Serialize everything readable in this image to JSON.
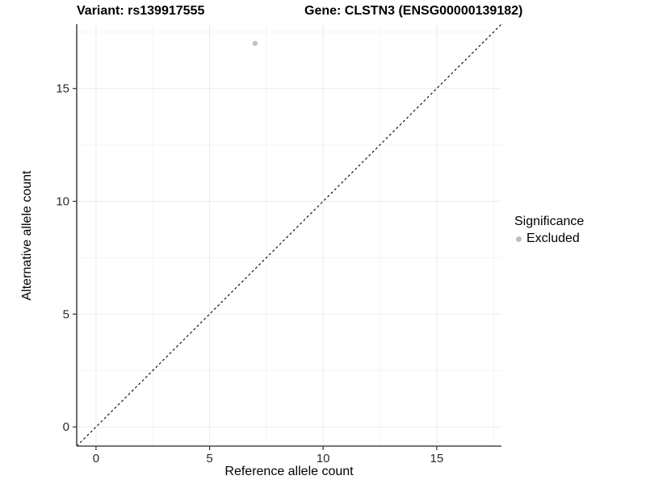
{
  "chart_data": {
    "type": "scatter",
    "titles": {
      "left": "Variant: rs139917555",
      "right": "Gene: CLSTN3 (ENSG00000139182)"
    },
    "xlabel": "Reference allele count",
    "ylabel": "Alternative allele count",
    "xlim": [
      -0.85,
      17.85
    ],
    "ylim": [
      -0.85,
      17.85
    ],
    "xticks": [
      0,
      5,
      10,
      15
    ],
    "yticks": [
      0,
      5,
      10,
      15
    ],
    "minor_xticks": [
      2.5,
      7.5,
      12.5,
      17.5
    ],
    "minor_yticks": [
      2.5,
      7.5,
      12.5,
      17.5
    ],
    "grid": "on",
    "points": [
      {
        "x": 7,
        "y": 17,
        "series": "Excluded"
      }
    ],
    "reference_line": {
      "type": "identity",
      "slope": 1,
      "intercept": 0,
      "style": "dashed",
      "color": "#000000"
    },
    "legend": {
      "title": "Significance",
      "position": "right",
      "items": [
        {
          "label": "Excluded",
          "color": "#bfbfbf"
        }
      ]
    },
    "colors": {
      "background": "#ffffff",
      "grid_major": "#ececec",
      "grid_minor": "#f4f4f4",
      "axis_line": "#4a4a4a",
      "tick_mark": "#333333",
      "tick_text": "#2b2b2b",
      "point": "#c2c2c2"
    }
  }
}
